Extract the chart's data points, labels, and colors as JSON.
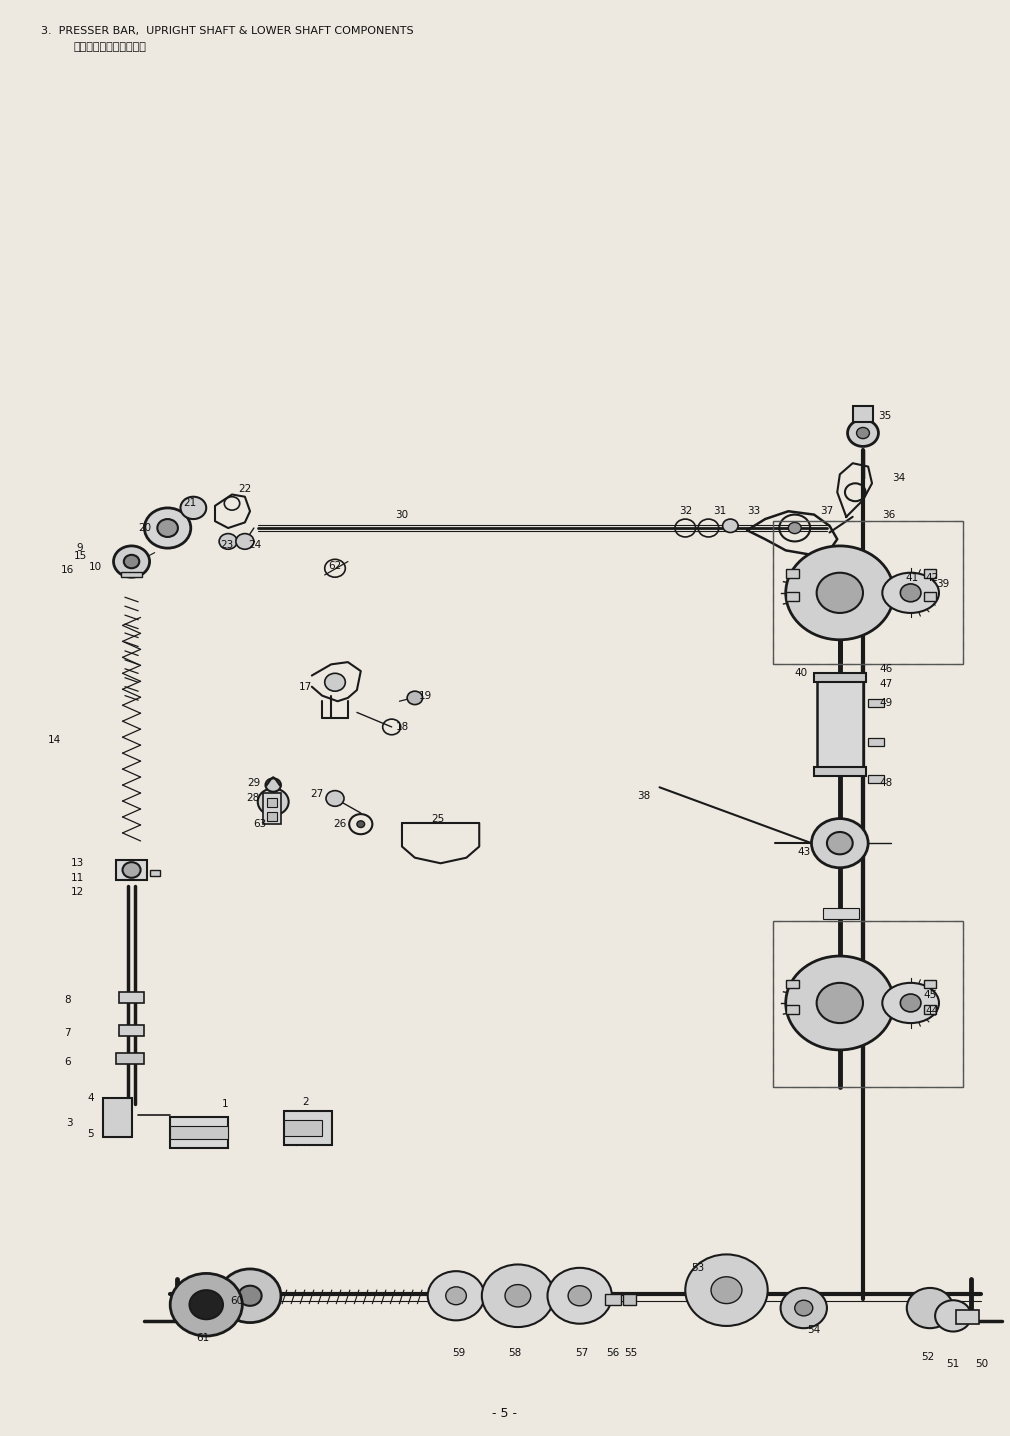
{
  "title_line1": "3.  PRESSER BAR,  UPRIGHT SHAFT & LOWER SHAFT COMPONENTS",
  "title_line2": "押え棒・立軸・下軸関係",
  "page_number": "- 5 -",
  "bg_color": "#ede9e0",
  "line_color": "#1a1a1a",
  "text_color": "#111111",
  "figsize": [
    10.1,
    14.36
  ],
  "dpi": 100,
  "xmin": 0,
  "xmax": 780,
  "ymin": 0,
  "ymax": 1280
}
